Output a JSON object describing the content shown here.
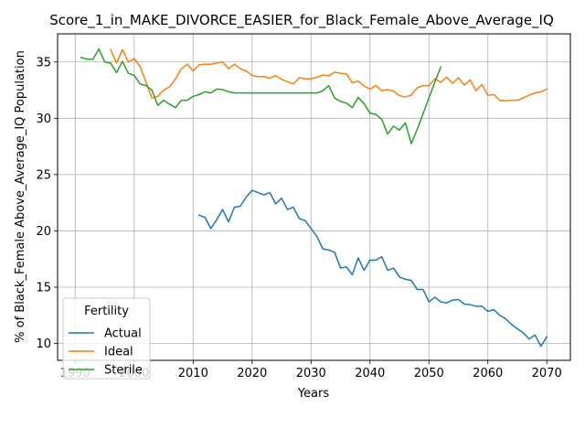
{
  "chart_data": {
    "type": "line",
    "title": "Score_1_in_MAKE_DIVORCE_EASIER_for_Black_Female_Above_Average_IQ",
    "xlabel": "Years",
    "ylabel": "% of Black_Female Above_Average_IQ Population",
    "xlim": [
      1987,
      2074
    ],
    "ylim": [
      8.5,
      37.5
    ],
    "x_ticks": [
      1990,
      2000,
      2010,
      2020,
      2030,
      2040,
      2050,
      2060,
      2070
    ],
    "y_ticks": [
      10,
      15,
      20,
      25,
      30,
      35
    ],
    "grid": true,
    "legend": {
      "title": "Fertility",
      "placement": "lower-left"
    },
    "series": [
      {
        "name": "Actual",
        "color": "#1f77b4",
        "x": [
          2011,
          2012,
          2013,
          2014,
          2015,
          2016,
          2017,
          2018,
          2019,
          2020,
          2021,
          2022,
          2023,
          2024,
          2025,
          2026,
          2027,
          2028,
          2029,
          2030,
          2031,
          2032,
          2033,
          2034,
          2035,
          2036,
          2037,
          2038,
          2039,
          2040,
          2041,
          2042,
          2043,
          2044,
          2045,
          2046,
          2047,
          2048,
          2049,
          2050,
          2051,
          2052,
          2053,
          2054,
          2055,
          2056,
          2057,
          2058,
          2059,
          2060,
          2061,
          2062,
          2063,
          2064,
          2065,
          2066,
          2067,
          2068,
          2069,
          2070
        ],
        "values": [
          21.4,
          21.2,
          20.2,
          21.0,
          21.9,
          20.8,
          22.1,
          22.2,
          23.0,
          23.6,
          23.4,
          23.2,
          23.4,
          22.4,
          22.9,
          21.9,
          22.1,
          21.1,
          20.9,
          20.2,
          19.5,
          18.4,
          18.3,
          18.1,
          16.7,
          16.8,
          16.1,
          17.6,
          16.5,
          17.4,
          17.4,
          17.7,
          16.5,
          16.7,
          15.9,
          15.7,
          15.6,
          14.8,
          14.8,
          13.7,
          14.1,
          13.7,
          13.6,
          13.85,
          13.9,
          13.5,
          13.45,
          13.3,
          13.3,
          12.85,
          13.0,
          12.5,
          12.2,
          11.7,
          11.3,
          10.95,
          10.4,
          10.75,
          9.75,
          10.6
        ]
      },
      {
        "name": "Ideal",
        "color": "#ff7f0e",
        "x": [
          1996,
          1997,
          1998,
          1999,
          2000,
          2001,
          2002,
          2003,
          2004,
          2005,
          2006,
          2007,
          2008,
          2009,
          2010,
          2011,
          2012,
          2013,
          2014,
          2015,
          2016,
          2017,
          2018,
          2019,
          2020,
          2021,
          2022,
          2023,
          2024,
          2025,
          2026,
          2027,
          2028,
          2029,
          2030,
          2031,
          2032,
          2033,
          2034,
          2035,
          2036,
          2037,
          2038,
          2039,
          2040,
          2041,
          2042,
          2043,
          2044,
          2045,
          2046,
          2047,
          2048,
          2049,
          2050,
          2051,
          2052,
          2053,
          2054,
          2055,
          2056,
          2057,
          2058,
          2059,
          2060,
          2061,
          2062,
          2063,
          2064,
          2065,
          2066,
          2067,
          2068,
          2069,
          2070
        ],
        "values": [
          36.1,
          34.9,
          36.1,
          35.0,
          35.3,
          34.6,
          33.2,
          31.8,
          31.95,
          32.5,
          32.8,
          33.5,
          34.4,
          34.8,
          34.2,
          34.75,
          34.8,
          34.8,
          34.9,
          35.0,
          34.4,
          34.8,
          34.4,
          34.2,
          33.8,
          33.7,
          33.7,
          33.55,
          33.8,
          33.45,
          33.25,
          33.05,
          33.6,
          33.5,
          33.5,
          33.65,
          33.85,
          33.75,
          34.1,
          34.0,
          33.95,
          33.15,
          33.3,
          32.85,
          32.6,
          32.9,
          32.45,
          32.55,
          32.4,
          32.0,
          31.9,
          32.05,
          32.7,
          32.9,
          32.9,
          33.5,
          33.2,
          33.65,
          33.1,
          33.6,
          32.95,
          33.4,
          32.45,
          33.0,
          32.05,
          32.1,
          31.6,
          31.55,
          31.6,
          31.6,
          31.8,
          32.05,
          32.25,
          32.35,
          32.6
        ]
      },
      {
        "name": "Sterile",
        "color": "#2ca02c",
        "x": [
          1991,
          1992,
          1993,
          1994,
          1995,
          1996,
          1997,
          1998,
          1999,
          2000,
          2001,
          2002,
          2003,
          2004,
          2005,
          2006,
          2007,
          2008,
          2009,
          2010,
          2011,
          2012,
          2013,
          2014,
          2015,
          2016,
          2017,
          2018,
          2019,
          2020,
          2021,
          2022,
          2023,
          2024,
          2025,
          2026,
          2027,
          2028,
          2029,
          2030,
          2031,
          2032,
          2033,
          2034,
          2035,
          2036,
          2037,
          2038,
          2039,
          2040,
          2041,
          2042,
          2043,
          2044,
          2045,
          2046,
          2047,
          2048,
          2049,
          2050,
          2051,
          2052
        ],
        "values": [
          35.4,
          35.25,
          35.25,
          36.15,
          35.0,
          34.9,
          34.05,
          35.05,
          34.0,
          33.8,
          33.05,
          32.9,
          32.5,
          31.15,
          31.6,
          31.25,
          30.95,
          31.6,
          31.6,
          31.95,
          32.1,
          32.35,
          32.25,
          32.6,
          32.55,
          32.35,
          32.25,
          32.25,
          32.25,
          32.25,
          32.25,
          32.25,
          32.25,
          32.25,
          32.25,
          32.25,
          32.25,
          32.25,
          32.25,
          32.25,
          32.25,
          32.45,
          32.9,
          31.8,
          31.5,
          31.35,
          30.95,
          31.85,
          31.3,
          30.45,
          30.35,
          29.9,
          28.6,
          29.3,
          28.95,
          29.6,
          27.75,
          29.0,
          30.4,
          31.8,
          33.2,
          34.55
        ]
      }
    ]
  }
}
